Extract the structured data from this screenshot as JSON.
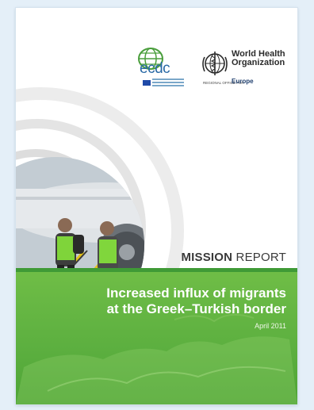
{
  "cover": {
    "ecdc_word": "ecdc",
    "who_name_line1": "World Health",
    "who_name_line2": "Organization",
    "who_regional": "REGIONAL OFFICE FOR",
    "who_region": "Europe",
    "mission_bold": "MISSION",
    "mission_rest": " REPORT",
    "title_line1": "Increased influx of migrants",
    "title_line2": "at the Greek–Turkish border",
    "date": "April 2011"
  },
  "colors": {
    "page_background": "#e4eff8",
    "ecdc_blue": "#2a6aa6",
    "ecdc_green": "#4a9e3c",
    "who_blue": "#1f3f6e",
    "band_green": "#5db040",
    "title_text": "#ffffff"
  },
  "icons": [
    "ecdc-globe-icon",
    "eu-flag-icon",
    "who-emblem-icon"
  ]
}
